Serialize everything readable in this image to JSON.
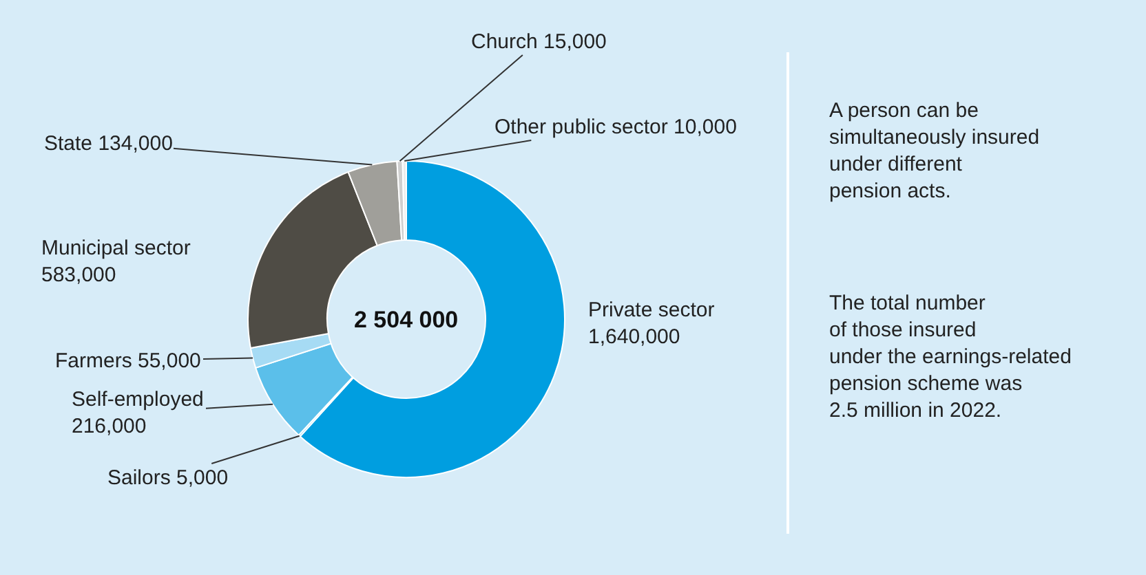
{
  "chart_data": {
    "type": "donut",
    "categories": [
      "Private sector",
      "Sailors",
      "Self-employed",
      "Farmers",
      "Municipal sector",
      "State",
      "Church",
      "Other public sector"
    ],
    "values": [
      1640000,
      5000,
      216000,
      55000,
      583000,
      134000,
      15000,
      10000
    ],
    "value_labels": [
      "1,640,000",
      "5,000",
      "216,000",
      "55,000",
      "583,000",
      "134,000",
      "15,000",
      "10,000"
    ],
    "colors": [
      "#009ee0",
      "#7fcdee",
      "#5bbfea",
      "#a6dbf4",
      "#4f4c45",
      "#a09f9a",
      "#cfcfcf",
      "#ececec"
    ],
    "annotations": [
      "2 504 000",
      "A person can be\nsimultaneously insured\nunder different\npension acts.",
      "The total number\nof those insured\nunder the earnings-related\npension scheme was\n2.5 million in 2022."
    ],
    "legend": false
  }
}
